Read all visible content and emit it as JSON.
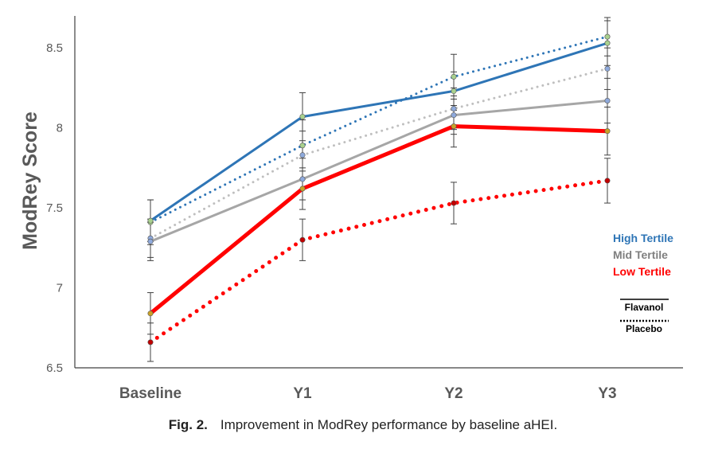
{
  "chart_data": {
    "type": "line",
    "title": "",
    "xlabel": "",
    "ylabel": "ModRey Score",
    "ylim": [
      6.5,
      8.7
    ],
    "yticks": [
      "6.5",
      "7",
      "7.5",
      "8",
      "8.5"
    ],
    "categories": [
      "Baseline",
      "Y1",
      "Y2",
      "Y3"
    ],
    "series": [
      {
        "name": "High Tertile Placebo",
        "group": "High Tertile",
        "condition": "Placebo",
        "color": "#2e75b6",
        "marker": "#a9d18e",
        "style": "dotted",
        "width": 3,
        "values": [
          7.41,
          7.89,
          8.32,
          8.57
        ],
        "err": [
          0.14,
          0.16,
          0.14,
          0.12
        ]
      },
      {
        "name": "Mid Tertile Placebo",
        "group": "Mid Tertile",
        "condition": "Placebo",
        "color": "#bfbfbf",
        "marker": "#8faadc",
        "style": "dotted",
        "width": 3,
        "values": [
          7.31,
          7.83,
          8.12,
          8.37
        ],
        "err": [
          0.12,
          0.15,
          0.13,
          0.13
        ]
      },
      {
        "name": "Mid Tertile Flavanol",
        "group": "Mid Tertile",
        "condition": "Flavanol",
        "color": "#a6a6a6",
        "marker": "#8faadc",
        "style": "solid",
        "width": 3,
        "values": [
          7.29,
          7.68,
          8.08,
          8.17
        ],
        "err": [
          0.12,
          0.13,
          0.12,
          0.14
        ]
      },
      {
        "name": "High Tertile Flavanol",
        "group": "High Tertile",
        "condition": "Flavanol",
        "color": "#2e75b6",
        "marker": "#a9d18e",
        "style": "solid",
        "width": 3,
        "values": [
          7.42,
          8.07,
          8.23,
          8.53
        ],
        "err": [
          0.13,
          0.15,
          0.12,
          0.14
        ]
      },
      {
        "name": "Low Tertile Placebo",
        "group": "Low Tertile",
        "condition": "Placebo",
        "color": "#ff0000",
        "marker": "#c00000",
        "style": "dotted",
        "width": 5,
        "values": [
          6.66,
          7.3,
          7.53,
          7.67
        ],
        "err": [
          0.12,
          0.13,
          0.13,
          0.14
        ]
      },
      {
        "name": "Low Tertile Flavanol",
        "group": "Low Tertile",
        "condition": "Flavanol",
        "color": "#ff0000",
        "marker": "#c9a227",
        "style": "solid",
        "width": 5,
        "values": [
          6.84,
          7.62,
          8.01,
          7.98
        ],
        "err": [
          0.13,
          0.13,
          0.13,
          0.15
        ]
      }
    ],
    "legend": {
      "position": "right",
      "groups": [
        {
          "label": "High Tertile",
          "color": "#2e75b6"
        },
        {
          "label": "Mid Tertile",
          "color": "#7f7f7f"
        },
        {
          "label": "Low Tertile",
          "color": "#ff0000"
        }
      ],
      "styles": [
        {
          "label": "Flavanol",
          "style": "solid"
        },
        {
          "label": "Placebo",
          "style": "dotted"
        }
      ]
    }
  },
  "caption": {
    "label": "Fig. 2.",
    "text": "Improvement in ModRey performance by baseline aHEI."
  }
}
